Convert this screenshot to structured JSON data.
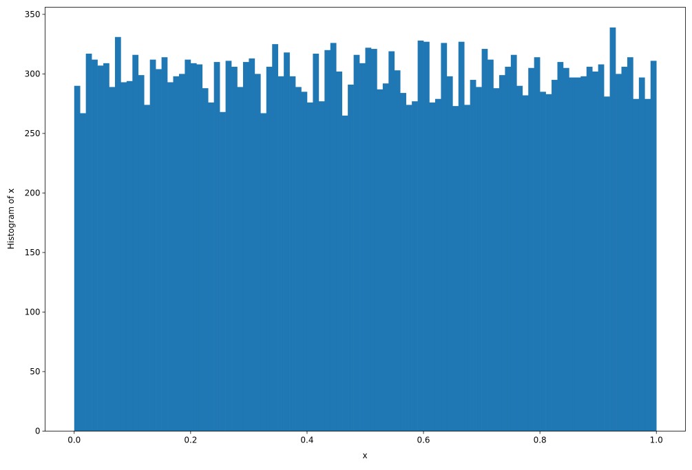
{
  "chart_data": {
    "type": "bar",
    "subtype": "histogram",
    "xlabel": "x",
    "ylabel": "Histogram of x",
    "xlim": [
      -0.05,
      1.05
    ],
    "ylim": [
      0,
      356
    ],
    "x_ticks": [
      "0.0",
      "0.2",
      "0.4",
      "0.6",
      "0.8",
      "1.0"
    ],
    "y_ticks": [
      "0",
      "50",
      "100",
      "150",
      "200",
      "250",
      "300",
      "350"
    ],
    "grid": false,
    "bar_color": "#1f77b4",
    "bin_range": [
      0,
      1
    ],
    "bins": 100,
    "values": [
      290,
      267,
      317,
      312,
      307,
      309,
      289,
      331,
      293,
      294,
      316,
      299,
      274,
      312,
      304,
      314,
      293,
      298,
      300,
      312,
      309,
      308,
      288,
      276,
      310,
      268,
      311,
      306,
      289,
      310,
      313,
      300,
      267,
      306,
      325,
      298,
      318,
      298,
      289,
      285,
      276,
      317,
      277,
      320,
      326,
      302,
      265,
      291,
      316,
      309,
      322,
      321,
      287,
      292,
      319,
      303,
      284,
      274,
      277,
      328,
      327,
      276,
      279,
      326,
      298,
      273,
      327,
      274,
      295,
      289,
      321,
      312,
      288,
      299,
      306,
      316,
      290,
      282,
      305,
      314,
      285,
      283,
      295,
      310,
      305,
      297,
      297,
      298,
      306,
      302,
      308,
      281,
      339,
      300,
      306,
      314,
      279,
      297,
      279,
      311
    ]
  }
}
